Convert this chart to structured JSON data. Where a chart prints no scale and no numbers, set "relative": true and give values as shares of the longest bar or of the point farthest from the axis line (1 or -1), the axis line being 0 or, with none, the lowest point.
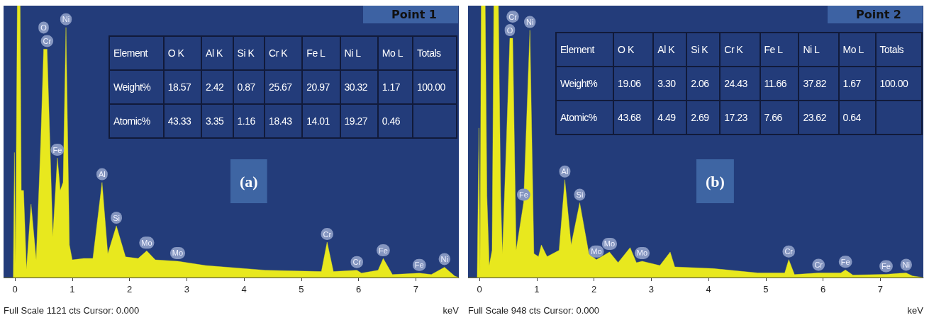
{
  "chart_data": [
    {
      "type": "area",
      "title": "Point 1",
      "xlabel": "keV",
      "color": "#e8e81e",
      "relative": true,
      "xlim": [
        -0.2,
        7.75
      ],
      "xticks": [
        0,
        1,
        2,
        3,
        4,
        5,
        6,
        7
      ],
      "x": [
        -0.2,
        -0.03,
        -0.01,
        0.01,
        0.04,
        0.09,
        0.11,
        0.15,
        0.2,
        0.28,
        0.37,
        0.45,
        0.5,
        0.56,
        0.66,
        0.74,
        0.79,
        0.84,
        0.89,
        0.95,
        1.0,
        1.2,
        1.36,
        1.52,
        1.62,
        1.77,
        1.93,
        2.15,
        2.3,
        2.45,
        2.84,
        3.33,
        4.37,
        5.35,
        5.45,
        5.56,
        5.97,
        6.05,
        6.34,
        6.43,
        6.59,
        7.06,
        7.27,
        7.5,
        7.68,
        7.75
      ],
      "values": [
        0,
        0,
        0.46,
        0.05,
        1,
        1,
        0.32,
        0.32,
        0.03,
        0.27,
        0.065,
        0.5,
        0.84,
        0.84,
        0.15,
        0.44,
        0.32,
        0.35,
        0.92,
        0.12,
        0.065,
        0.07,
        0.07,
        0.35,
        0.087,
        0.19,
        0.076,
        0.07,
        0.098,
        0.065,
        0.06,
        0.044,
        0.027,
        0.022,
        0.13,
        0.022,
        0.027,
        0.016,
        0.027,
        0.07,
        0.011,
        0.016,
        0.011,
        0.038,
        0.005,
        0
      ],
      "annotations": [
        "(a)",
        "Full Scale 1121 cts Cursor: 0.000",
        {
          "text": "Cr",
          "x": 0.56,
          "y": 0.84
        },
        {
          "text": "O",
          "x": 0.5,
          "y": 0.84
        },
        {
          "text": "Ni",
          "x": 0.89,
          "y": 0.92
        },
        {
          "text": "Fe",
          "x": 0.74,
          "y": 0.44
        },
        {
          "text": "Al",
          "x": 1.52,
          "y": 0.35
        },
        {
          "text": "Si",
          "x": 1.77,
          "y": 0.19
        },
        {
          "text": "Mo",
          "x": 2.3,
          "y": 0.098
        },
        {
          "text": "Mo",
          "x": 2.84,
          "y": 0.06
        },
        {
          "text": "Cr",
          "x": 5.45,
          "y": 0.13
        },
        {
          "text": "Cr",
          "x": 5.97,
          "y": 0.027
        },
        {
          "text": "Fe",
          "x": 6.43,
          "y": 0.07
        },
        {
          "text": "Fe",
          "x": 7.06,
          "y": 0.016
        },
        {
          "text": "Ni",
          "x": 7.5,
          "y": 0.038
        }
      ]
    },
    {
      "type": "other",
      "ylabel": "Element",
      "data_labels": true,
      "categories": [
        "O K",
        "Al K",
        "Si K",
        "Cr K",
        "Fe L",
        "Ni L",
        "Mo L",
        "Totals"
      ],
      "series": [
        {
          "name": "Weight%",
          "values": [
            18.57,
            2.42,
            0.87,
            25.67,
            20.97,
            30.32,
            1.17,
            100.0
          ],
          "value_labels": [
            "18.57",
            "2.42",
            "0.87",
            "25.67",
            "20.97",
            "30.32",
            "1.17",
            "100.00"
          ]
        },
        {
          "name": "Atomic%",
          "values": [
            43.33,
            3.35,
            1.16,
            18.43,
            14.01,
            19.27,
            0.46,
            null
          ],
          "value_labels": [
            "43.33",
            "3.35",
            "1.16",
            "18.43",
            "14.01",
            "19.27",
            "0.46",
            null
          ]
        }
      ]
    },
    {
      "type": "area",
      "title": "Point 2",
      "xlabel": "keV",
      "color": "#e8e81e",
      "relative": true,
      "xlim": [
        -0.2,
        7.75
      ],
      "xticks": [
        0,
        1,
        2,
        3,
        4,
        5,
        6,
        7
      ],
      "x": [
        -0.2,
        -0.04,
        -0.01,
        0.01,
        0.03,
        0.1,
        0.13,
        0.17,
        0.22,
        0.25,
        0.33,
        0.37,
        0.4,
        0.47,
        0.53,
        0.58,
        0.64,
        0.77,
        0.88,
        0.95,
        1.03,
        1.08,
        1.18,
        1.39,
        1.49,
        1.6,
        1.75,
        1.91,
        2.04,
        2.27,
        2.42,
        2.63,
        2.74,
        2.84,
        3.15,
        3.33,
        3.41,
        4.08,
        4.86,
        5.33,
        5.4,
        5.5,
        5.92,
        6.31,
        6.39,
        6.52,
        7.1,
        7.45,
        7.56,
        7.75
      ],
      "values": [
        0,
        0,
        0.55,
        0.02,
        1,
        1,
        0.3,
        0.044,
        0.1,
        1,
        1,
        0.3,
        0.088,
        0.5,
        0.88,
        0.88,
        0.1,
        0.275,
        0.91,
        0.088,
        0.077,
        0.12,
        0.077,
        0.1,
        0.36,
        0.12,
        0.275,
        0.088,
        0.066,
        0.094,
        0.055,
        0.11,
        0.055,
        0.06,
        0.044,
        0.094,
        0.039,
        0.033,
        0.017,
        0.017,
        0.066,
        0.011,
        0.017,
        0.017,
        0.028,
        0.009,
        0.012,
        0.017,
        0.006,
        0
      ],
      "annotations": [
        "(b)",
        "Full Scale 948 cts Cursor: 0.000",
        {
          "text": "O",
          "x": 0.53,
          "y": 0.88
        },
        {
          "text": "Cr",
          "x": 0.58,
          "y": 0.88
        },
        {
          "text": "Ni",
          "x": 0.88,
          "y": 0.91
        },
        {
          "text": "Fe",
          "x": 0.77,
          "y": 0.275
        },
        {
          "text": "Al",
          "x": 1.49,
          "y": 0.36
        },
        {
          "text": "Si",
          "x": 1.75,
          "y": 0.275
        },
        {
          "text": "Mo",
          "x": 2.04,
          "y": 0.066
        },
        {
          "text": "Mo",
          "x": 2.27,
          "y": 0.094
        },
        {
          "text": "Mo",
          "x": 2.84,
          "y": 0.06
        },
        {
          "text": "Cr",
          "x": 5.4,
          "y": 0.066
        },
        {
          "text": "Cr",
          "x": 5.92,
          "y": 0.017
        },
        {
          "text": "Fe",
          "x": 6.39,
          "y": 0.028
        },
        {
          "text": "Fe",
          "x": 7.1,
          "y": 0.012
        },
        {
          "text": "Ni",
          "x": 7.45,
          "y": 0.017
        }
      ]
    },
    {
      "type": "other",
      "ylabel": "Element",
      "data_labels": true,
      "categories": [
        "O K",
        "Al K",
        "Si K",
        "Cr K",
        "Fe L",
        "Ni L",
        "Mo L",
        "Totals"
      ],
      "series": [
        {
          "name": "Weight%",
          "values": [
            19.06,
            3.3,
            2.06,
            24.43,
            11.66,
            37.82,
            1.67,
            100.0
          ],
          "value_labels": [
            "19.06",
            "3.30",
            "2.06",
            "24.43",
            "11.66",
            "37.82",
            "1.67",
            "100.00"
          ]
        },
        {
          "name": "Atomic%",
          "values": [
            43.68,
            4.49,
            2.69,
            17.23,
            7.66,
            23.62,
            0.64,
            null
          ],
          "value_labels": [
            "43.68",
            "4.49",
            "2.69",
            "17.23",
            "7.66",
            "23.62",
            "0.64",
            null
          ]
        }
      ]
    }
  ]
}
